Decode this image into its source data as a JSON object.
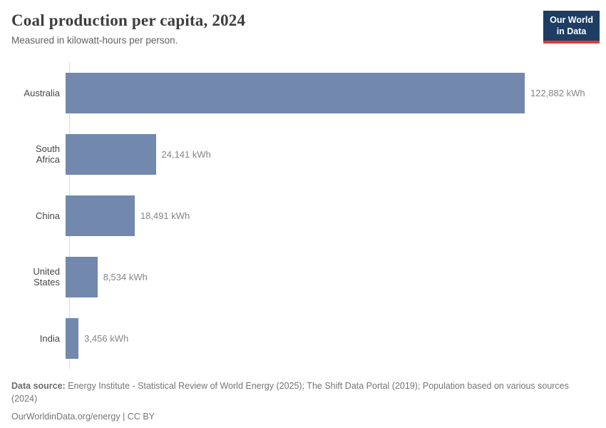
{
  "header": {
    "title": "Coal production per capita, 2024",
    "subtitle": "Measured in kilowatt-hours per person."
  },
  "logo": {
    "line1": "Our World",
    "line2": "in Data",
    "bg_color": "#1d3d63",
    "accent_color": "#dc3e36"
  },
  "chart_data": {
    "type": "bar",
    "orientation": "horizontal",
    "title": "Coal production per capita, 2024",
    "subtitle": "Measured in kilowatt-hours per person.",
    "unit": "kWh",
    "categories": [
      "Australia",
      "South Africa",
      "China",
      "United States",
      "India"
    ],
    "values": [
      122882,
      24141,
      18491,
      8534,
      3456
    ],
    "value_labels": [
      "122,882 kWh",
      "24,141 kWh",
      "18,491 kWh",
      "8,534 kWh",
      "3,456 kWh"
    ],
    "xlim": [
      0,
      122882
    ],
    "bar_color": "#7288ac",
    "axis_color": "#dcdcdc",
    "grid": false,
    "legend": false
  },
  "footer": {
    "source_label": "Data source:",
    "source_text": " Energy Institute - Statistical Review of World Energy (2025); The Shift Data Portal (2019); Population based on various sources (2024)",
    "link_text": "OurWorldinData.org/energy | CC BY"
  }
}
